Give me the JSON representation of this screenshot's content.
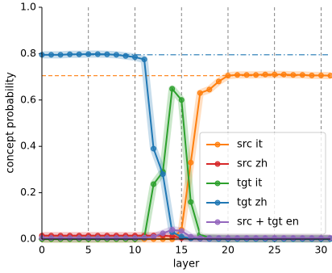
{
  "chart_data": {
    "type": "line",
    "x_label": "layer",
    "y_label": "concept probability",
    "x": [
      0,
      1,
      2,
      3,
      4,
      5,
      6,
      7,
      8,
      9,
      10,
      11,
      12,
      13,
      14,
      15,
      16,
      17,
      18,
      19,
      20,
      21,
      22,
      23,
      24,
      25,
      26,
      27,
      28,
      29,
      30,
      31
    ],
    "series": [
      {
        "name": "src it",
        "color": "#ff7f0e",
        "values": [
          0,
          0,
          0,
          0,
          0,
          0,
          0,
          0,
          0,
          0,
          0,
          0,
          0,
          0,
          0,
          0.04,
          0.33,
          0.63,
          0.645,
          0.68,
          0.705,
          0.708,
          0.708,
          0.708,
          0.71,
          0.71,
          0.71,
          0.708,
          0.708,
          0.706,
          0.706,
          0.705
        ]
      },
      {
        "name": "src zh",
        "color": "#d62728",
        "values": [
          0.015,
          0.015,
          0.015,
          0.015,
          0.015,
          0.015,
          0.015,
          0.015,
          0.015,
          0.015,
          0.015,
          0.015,
          0.015,
          0.015,
          0.012,
          0.005,
          0.003,
          0.002,
          0.002,
          0.002,
          0.002,
          0.002,
          0.002,
          0.002,
          0.002,
          0.002,
          0.002,
          0.002,
          0.002,
          0.002,
          0.002,
          0.002
        ]
      },
      {
        "name": "tgt it",
        "color": "#2ca02c",
        "values": [
          0,
          0,
          0,
          0,
          0,
          0,
          0,
          0,
          0,
          0,
          0,
          0.005,
          0.237,
          0.29,
          0.648,
          0.6,
          0.16,
          0.02,
          0.005,
          0.002,
          0.001,
          0.001,
          0.001,
          0.001,
          0.001,
          0.001,
          0.001,
          0.001,
          0.001,
          0.001,
          0.001,
          0.001
        ]
      },
      {
        "name": "tgt zh",
        "color": "#1f77b4",
        "values": [
          0.795,
          0.795,
          0.795,
          0.797,
          0.797,
          0.798,
          0.798,
          0.797,
          0.795,
          0.79,
          0.785,
          0.775,
          0.39,
          0.28,
          0.03,
          0.01,
          0.003,
          0.002,
          0.001,
          0.001,
          0.001,
          0.001,
          0.001,
          0.001,
          0.001,
          0.001,
          0.001,
          0.001,
          0.001,
          0.001,
          0.001,
          0.001
        ]
      },
      {
        "name": "src + tgt en",
        "color": "#9467bd",
        "values": [
          0.005,
          0.005,
          0.005,
          0.005,
          0.005,
          0.005,
          0.005,
          0.005,
          0.005,
          0.005,
          0.005,
          0.006,
          0.01,
          0.025,
          0.04,
          0.035,
          0.01,
          0.005,
          0.005,
          0.005,
          0.005,
          0.005,
          0.005,
          0.005,
          0.005,
          0.005,
          0.005,
          0.005,
          0.005,
          0.005,
          0.005,
          0.005
        ]
      }
    ],
    "hlines": [
      {
        "y": 0.795,
        "color": "#1f77b4",
        "style": "dashdot"
      },
      {
        "y": 0.705,
        "color": "#ff7f0e",
        "style": "dashed"
      }
    ],
    "xlim": [
      0,
      31
    ],
    "ylim": [
      0,
      1
    ],
    "xticks": [
      0,
      5,
      10,
      15,
      20,
      25,
      30
    ],
    "yticks": [
      {
        "value": 0,
        "label": "0.0"
      },
      0.2,
      0.4,
      0.6,
      0.8,
      {
        "value": 1,
        "label": "1.0"
      }
    ],
    "x_grid": true,
    "legend": "lower right"
  }
}
